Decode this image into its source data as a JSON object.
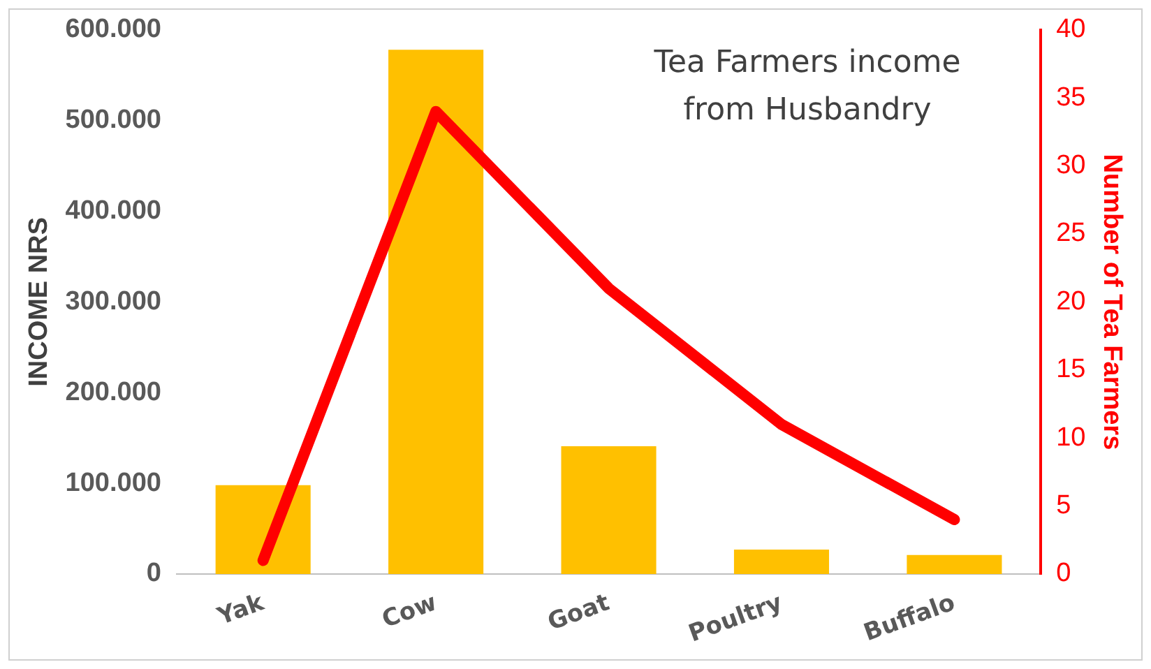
{
  "chart_data": {
    "type": "bar",
    "title": "Tea Farmers income from Husbandry",
    "ylabel": "INCOME NRS",
    "y2label": "Number of Tea Farmers",
    "categories": [
      "Yak",
      "Cow",
      "Goat",
      "Poultry",
      "Buffalo"
    ],
    "series": [
      {
        "color": "#ffc000",
        "values": [
          98000,
          578000,
          141000,
          27000,
          21000
        ]
      },
      {
        "type": "line",
        "axis": "y2",
        "color": "#ff0000",
        "values": [
          1,
          34,
          21,
          11,
          4
        ]
      }
    ],
    "ylim": [
      0,
      600000
    ],
    "yticks": [
      {
        "value": 0,
        "label": "0"
      },
      {
        "value": 100000,
        "label": "100.000"
      },
      {
        "value": 200000,
        "label": "200.000"
      },
      {
        "value": 300000,
        "label": "300.000"
      },
      {
        "value": 400000,
        "label": "400.000"
      },
      {
        "value": 500000,
        "label": "500.000"
      },
      {
        "value": 600000,
        "label": "600.000"
      }
    ],
    "y2lim": [
      0,
      40
    ],
    "y2ticks": [
      0,
      5,
      10,
      15,
      20,
      25,
      30,
      35,
      40
    ],
    "grid": false,
    "legend": false,
    "marker": "none",
    "line_style": "solid"
  }
}
